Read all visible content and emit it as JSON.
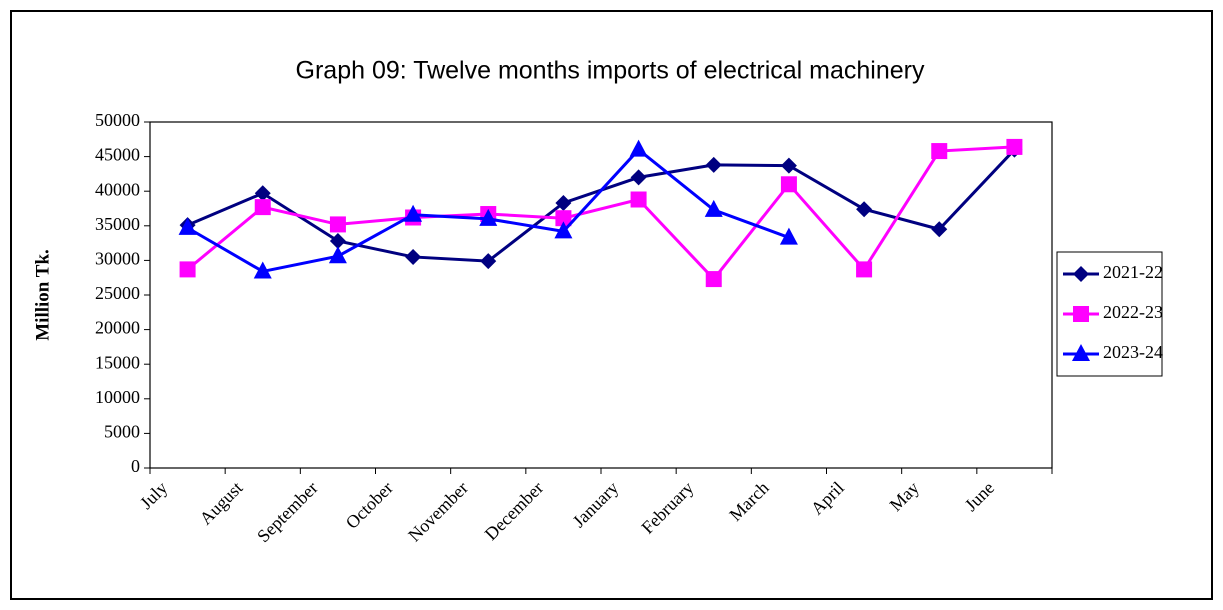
{
  "chart_data": {
    "type": "line",
    "title": "Graph 09: Twelve months imports of electrical machinery",
    "y_label": "Million Tk.",
    "categories": [
      "July",
      "August",
      "September",
      "October",
      "November",
      "December",
      "January",
      "February",
      "March",
      "April",
      "May",
      "June"
    ],
    "series": [
      {
        "name": "2021-22",
        "color": "#000080",
        "marker": "diamond",
        "values": [
          35100,
          39700,
          32800,
          30500,
          29900,
          38300,
          42000,
          43800,
          43700,
          37400,
          34500,
          46000
        ]
      },
      {
        "name": "2022-23",
        "color": "#ff00ff",
        "marker": "square",
        "values": [
          28700,
          37700,
          35200,
          36200,
          36700,
          36100,
          38800,
          27300,
          41000,
          28700,
          45800,
          46400
        ]
      },
      {
        "name": "2023-24",
        "color": "#0000ff",
        "marker": "triangle",
        "values": [
          34700,
          28400,
          30600,
          36600,
          36000,
          34200,
          46000,
          37300,
          33300,
          null,
          null,
          null
        ]
      }
    ],
    "ylim": [
      0,
      50000
    ],
    "yticks": [
      0,
      5000,
      10000,
      15000,
      20000,
      25000,
      30000,
      35000,
      40000,
      45000,
      50000
    ],
    "grid": false,
    "legend": "right"
  }
}
